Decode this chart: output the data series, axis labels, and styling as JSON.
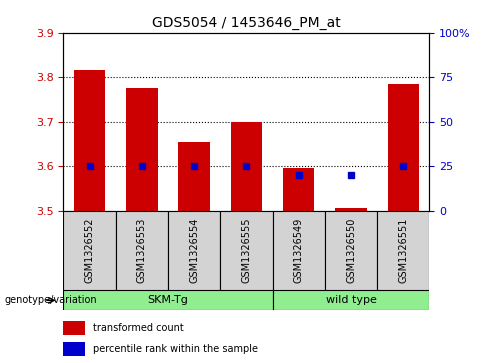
{
  "title": "GDS5054 / 1453646_PM_at",
  "samples": [
    "GSM1326552",
    "GSM1326553",
    "GSM1326554",
    "GSM1326555",
    "GSM1326549",
    "GSM1326550",
    "GSM1326551"
  ],
  "red_values": [
    3.815,
    3.775,
    3.655,
    3.7,
    3.595,
    3.505,
    3.785
  ],
  "blue_pct": [
    25,
    25,
    25,
    25,
    20,
    20,
    25
  ],
  "ylim_left": [
    3.5,
    3.9
  ],
  "ylim_right": [
    0,
    100
  ],
  "yticks_left": [
    3.5,
    3.6,
    3.7,
    3.8,
    3.9
  ],
  "yticks_right": [
    0,
    25,
    50,
    75,
    100
  ],
  "grid_lines": [
    3.6,
    3.7,
    3.8
  ],
  "groups": [
    {
      "label": "SKM-Tg",
      "start": 0,
      "end": 3
    },
    {
      "label": "wild type",
      "start": 4,
      "end": 6
    }
  ],
  "group_row_color": "#90EE90",
  "sample_bg_color": "#D3D3D3",
  "bar_bottom": 3.5,
  "bar_width": 0.6,
  "red_color": "#CC0000",
  "blue_color": "#0000CC",
  "legend_red": "transformed count",
  "legend_blue": "percentile rank within the sample",
  "genotype_label": "genotype/variation",
  "title_fontsize": 10,
  "tick_fontsize": 8,
  "label_fontsize": 7
}
